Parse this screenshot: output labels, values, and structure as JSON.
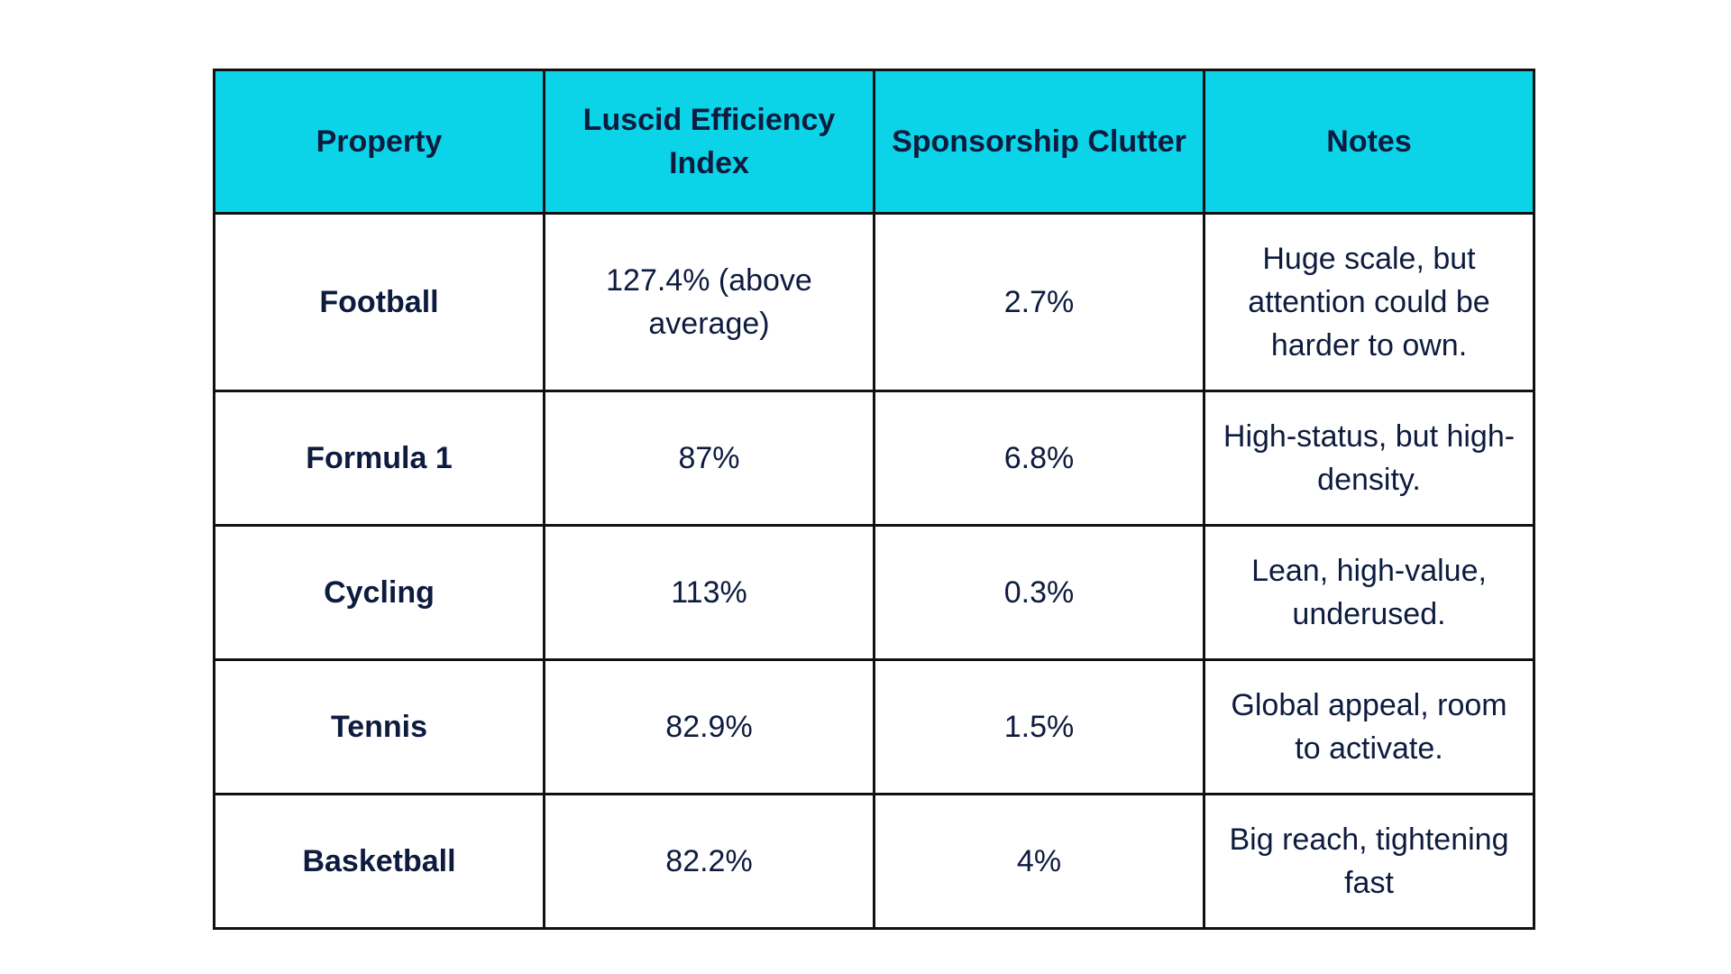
{
  "colors": {
    "header_background": "#0bd4e8",
    "text": "#0d1b3e",
    "border": "#111111",
    "background": "#ffffff"
  },
  "chart_data": {
    "type": "table",
    "columns": [
      "Property",
      "Luscid Efficiency Index",
      "Sponsorship Clutter",
      "Notes"
    ],
    "rows": [
      {
        "property": "Football",
        "efficiency_index": "127.4% (above average)",
        "sponsorship_clutter": "2.7%",
        "notes": "Huge scale, but attention could be harder to own."
      },
      {
        "property": "Formula 1",
        "efficiency_index": "87%",
        "sponsorship_clutter": "6.8%",
        "notes": "High-status, but high-density."
      },
      {
        "property": "Cycling",
        "efficiency_index": "113%",
        "sponsorship_clutter": "0.3%",
        "notes": "Lean, high-value, underused."
      },
      {
        "property": "Tennis",
        "efficiency_index": "82.9%",
        "sponsorship_clutter": "1.5%",
        "notes": "Global appeal, room to activate."
      },
      {
        "property": "Basketball",
        "efficiency_index": "82.2%",
        "sponsorship_clutter": "4%",
        "notes": "Big reach, tightening fast"
      }
    ]
  }
}
